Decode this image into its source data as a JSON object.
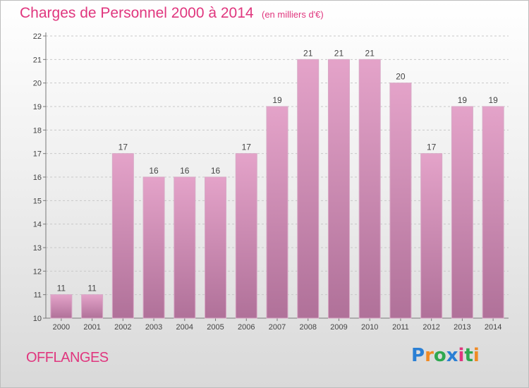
{
  "title": "Charges de Personnel 2000 à 2014",
  "subtitle": "(en milliers d'€)",
  "commune": "OFFLANGES",
  "logo": {
    "text": "Proxiti",
    "letters": [
      "P",
      "r",
      "o",
      "x",
      "i",
      "t",
      "i"
    ],
    "colors": [
      "#2a7fd4",
      "#f08a24",
      "#2fa84f",
      "#2a7fd4",
      "#e0367e",
      "#2fa84f",
      "#f08a24"
    ]
  },
  "chart_data": {
    "type": "bar",
    "title": "Charges de Personnel 2000 à 2014",
    "subtitle": "(en milliers d'€)",
    "categories": [
      "2000",
      "2001",
      "2002",
      "2003",
      "2004",
      "2005",
      "2006",
      "2007",
      "2008",
      "2009",
      "2010",
      "2011",
      "2012",
      "2013",
      "2014"
    ],
    "values": [
      11,
      11,
      17,
      16,
      16,
      16,
      17,
      19,
      21,
      21,
      21,
      20,
      17,
      19,
      19
    ],
    "data_labels": [
      "11",
      "11",
      "17",
      "16",
      "16",
      "16",
      "17",
      "19",
      "21",
      "21",
      "21",
      "20",
      "17",
      "19",
      "19"
    ],
    "ylim": [
      10,
      22
    ],
    "yticks": [
      "10",
      "11",
      "12",
      "13",
      "14",
      "15",
      "16",
      "17",
      "18",
      "19",
      "20",
      "21",
      "22"
    ],
    "grid": true,
    "bar_color_top": "#e4a3c9",
    "bar_color_bottom": "#b07199",
    "label_color": "#444444"
  }
}
